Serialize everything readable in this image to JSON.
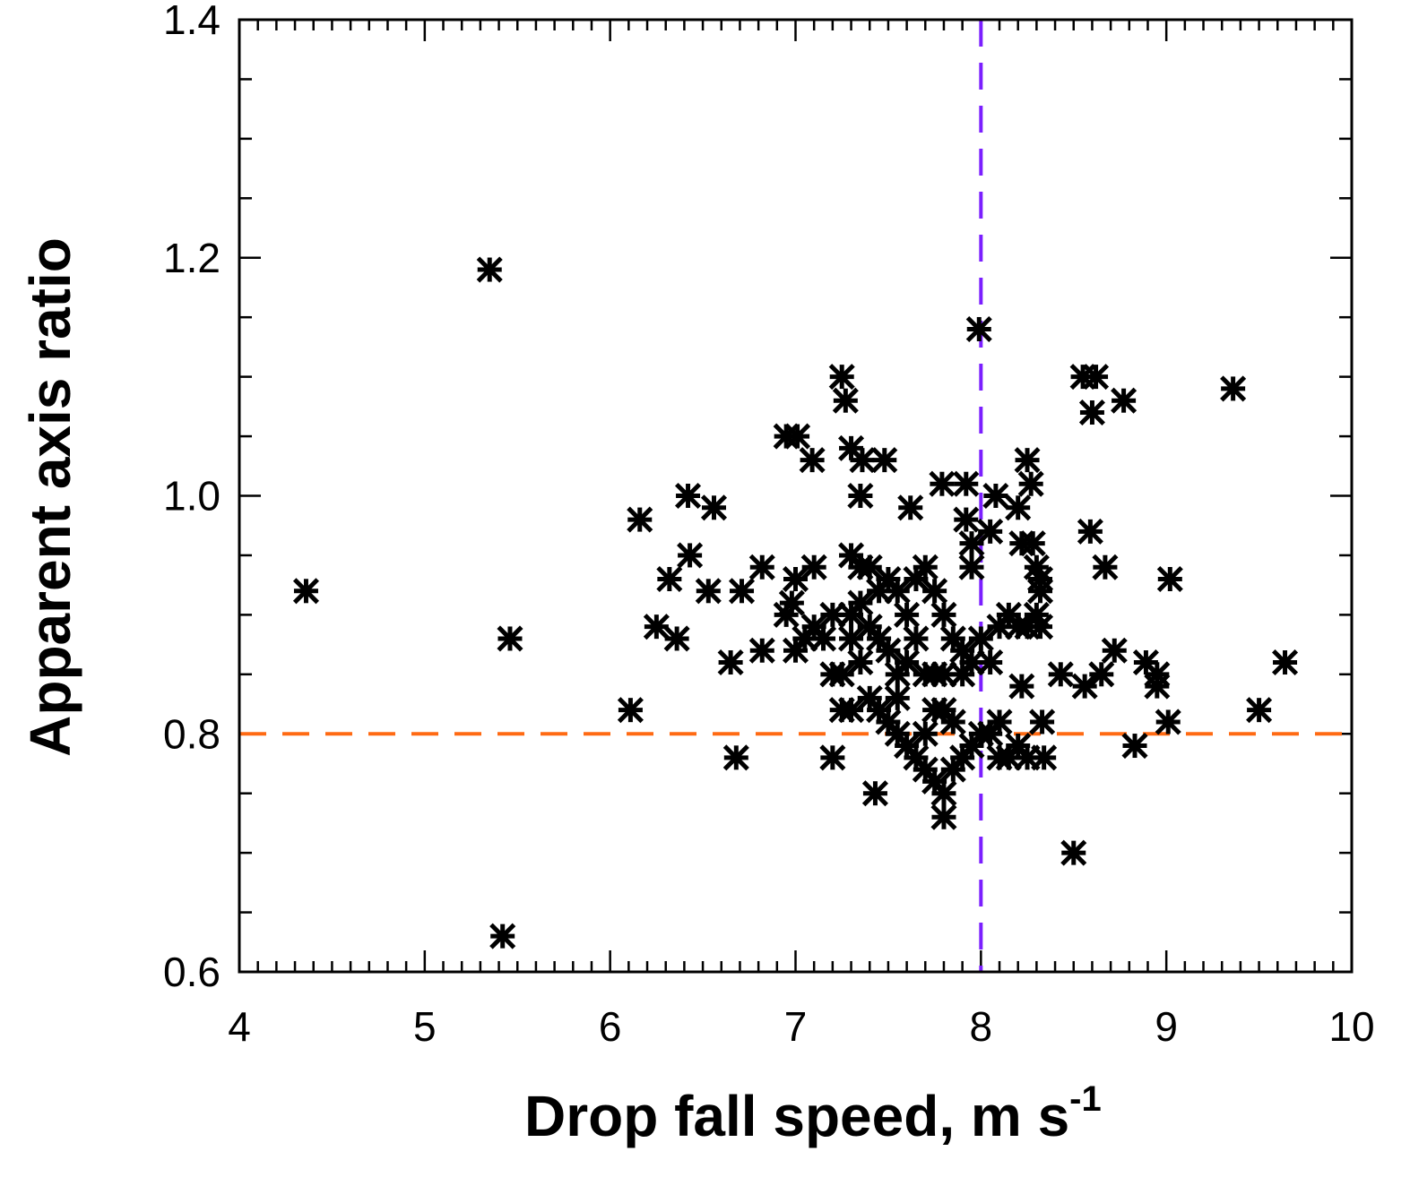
{
  "chart_data": {
    "type": "scatter",
    "title": "",
    "xlabel": "Drop fall speed, m s",
    "xlabel_superscript": "-1",
    "ylabel": "Apparent axis ratio",
    "xlim": [
      4,
      10
    ],
    "ylim": [
      0.6,
      1.4
    ],
    "x_ticks": [
      4,
      5,
      6,
      7,
      8,
      9,
      10
    ],
    "x_tick_labels": [
      "4",
      "5",
      "6",
      "7",
      "8",
      "9",
      "10"
    ],
    "y_ticks": [
      0.6,
      0.8,
      1.0,
      1.2,
      1.4
    ],
    "y_tick_labels": [
      "0.6",
      "0.8",
      "1.0",
      "1.2",
      "1.4"
    ],
    "grid": false,
    "marker": "asterisk",
    "colors": {
      "points": "#000000",
      "hline": "#ff6a13",
      "vline": "#7b1fff"
    },
    "reference_lines": [
      {
        "orientation": "horizontal",
        "value": 0.8,
        "style": "dashed",
        "color": "#ff6a13"
      },
      {
        "orientation": "vertical",
        "value": 8.0,
        "style": "dashed",
        "color": "#7b1fff"
      }
    ],
    "points": [
      [
        4.36,
        0.92
      ],
      [
        5.35,
        1.19
      ],
      [
        5.46,
        0.88
      ],
      [
        5.42,
        0.63
      ],
      [
        6.11,
        0.82
      ],
      [
        6.16,
        0.98
      ],
      [
        6.25,
        0.89
      ],
      [
        6.32,
        0.93
      ],
      [
        6.36,
        0.88
      ],
      [
        6.42,
        1.0
      ],
      [
        6.43,
        0.95
      ],
      [
        6.56,
        0.99
      ],
      [
        6.53,
        0.92
      ],
      [
        6.65,
        0.86
      ],
      [
        6.68,
        0.78
      ],
      [
        6.71,
        0.92
      ],
      [
        6.82,
        0.87
      ],
      [
        6.82,
        0.94
      ],
      [
        6.95,
        1.05
      ],
      [
        7.01,
        1.05
      ],
      [
        7.09,
        1.03
      ],
      [
        7.25,
        1.1
      ],
      [
        7.27,
        1.08
      ],
      [
        7.3,
        1.04
      ],
      [
        7.36,
        1.03
      ],
      [
        7.35,
        1.0
      ],
      [
        7.43,
        0.75
      ],
      [
        7.2,
        0.78
      ],
      [
        7.48,
        1.03
      ],
      [
        7.62,
        0.99
      ],
      [
        7.79,
        1.01
      ],
      [
        7.92,
        1.01
      ],
      [
        7.99,
        1.14
      ],
      [
        8.08,
        1.0
      ],
      [
        8.2,
        0.99
      ],
      [
        8.25,
        1.03
      ],
      [
        8.27,
        1.01
      ],
      [
        8.22,
        0.96
      ],
      [
        8.32,
        0.93
      ],
      [
        8.32,
        0.89
      ],
      [
        8.22,
        0.84
      ],
      [
        8.33,
        0.81
      ],
      [
        8.34,
        0.78
      ],
      [
        8.43,
        0.85
      ],
      [
        8.5,
        0.7
      ],
      [
        8.55,
        1.1
      ],
      [
        8.62,
        1.1
      ],
      [
        8.6,
        1.07
      ],
      [
        8.77,
        1.08
      ],
      [
        8.59,
        0.97
      ],
      [
        8.67,
        0.94
      ],
      [
        8.56,
        0.84
      ],
      [
        8.65,
        0.85
      ],
      [
        8.72,
        0.87
      ],
      [
        8.83,
        0.79
      ],
      [
        8.89,
        0.86
      ],
      [
        8.95,
        0.85
      ],
      [
        8.95,
        0.84
      ],
      [
        9.02,
        0.93
      ],
      [
        9.01,
        0.81
      ],
      [
        9.36,
        1.09
      ],
      [
        9.5,
        0.82
      ],
      [
        9.64,
        0.86
      ],
      [
        7.0,
        0.93
      ],
      [
        6.95,
        0.9
      ],
      [
        7.05,
        0.88
      ],
      [
        6.98,
        0.91
      ],
      [
        7.1,
        0.94
      ],
      [
        7.2,
        0.85
      ],
      [
        7.25,
        0.85
      ],
      [
        7.3,
        0.82
      ],
      [
        7.25,
        0.82
      ],
      [
        7.3,
        0.95
      ],
      [
        7.35,
        0.94
      ],
      [
        7.3,
        0.9
      ],
      [
        7.4,
        0.89
      ],
      [
        7.45,
        0.88
      ],
      [
        7.5,
        0.87
      ],
      [
        7.35,
        0.86
      ],
      [
        7.4,
        0.83
      ],
      [
        7.45,
        0.82
      ],
      [
        7.5,
        0.81
      ],
      [
        7.55,
        0.8
      ],
      [
        7.6,
        0.79
      ],
      [
        7.65,
        0.78
      ],
      [
        7.7,
        0.77
      ],
      [
        7.75,
        0.76
      ],
      [
        7.8,
        0.75
      ],
      [
        7.8,
        0.73
      ],
      [
        7.85,
        0.77
      ],
      [
        7.9,
        0.78
      ],
      [
        7.95,
        0.79
      ],
      [
        8.0,
        0.8
      ],
      [
        7.8,
        0.82
      ],
      [
        7.85,
        0.81
      ],
      [
        7.9,
        0.85
      ],
      [
        7.95,
        0.86
      ],
      [
        7.6,
        0.9
      ],
      [
        7.65,
        0.93
      ],
      [
        7.7,
        0.94
      ],
      [
        7.75,
        0.92
      ],
      [
        7.8,
        0.9
      ],
      [
        7.85,
        0.88
      ],
      [
        7.9,
        0.87
      ],
      [
        7.55,
        0.92
      ],
      [
        7.5,
        0.93
      ],
      [
        7.45,
        0.92
      ],
      [
        7.4,
        0.94
      ],
      [
        7.6,
        0.86
      ],
      [
        7.7,
        0.85
      ],
      [
        7.75,
        0.85
      ],
      [
        7.8,
        0.85
      ],
      [
        7.65,
        0.88
      ],
      [
        7.55,
        0.85
      ],
      [
        7.2,
        0.9
      ],
      [
        7.15,
        0.88
      ],
      [
        7.1,
        0.89
      ],
      [
        7.95,
        0.96
      ],
      [
        7.92,
        0.98
      ],
      [
        7.95,
        0.94
      ],
      [
        8.05,
        0.97
      ],
      [
        8.0,
        0.88
      ],
      [
        8.05,
        0.86
      ],
      [
        8.1,
        0.89
      ],
      [
        8.15,
        0.9
      ],
      [
        8.2,
        0.89
      ],
      [
        8.25,
        0.89
      ],
      [
        8.3,
        0.9
      ],
      [
        8.1,
        0.78
      ],
      [
        8.15,
        0.78
      ],
      [
        8.2,
        0.79
      ],
      [
        8.25,
        0.78
      ],
      [
        8.1,
        0.81
      ],
      [
        8.05,
        0.8
      ],
      [
        8.28,
        0.96
      ],
      [
        8.3,
        0.94
      ],
      [
        8.32,
        0.92
      ],
      [
        7.0,
        0.87
      ],
      [
        7.3,
        0.88
      ],
      [
        7.35,
        0.91
      ],
      [
        7.55,
        0.83
      ],
      [
        7.7,
        0.8
      ],
      [
        7.75,
        0.82
      ]
    ]
  }
}
